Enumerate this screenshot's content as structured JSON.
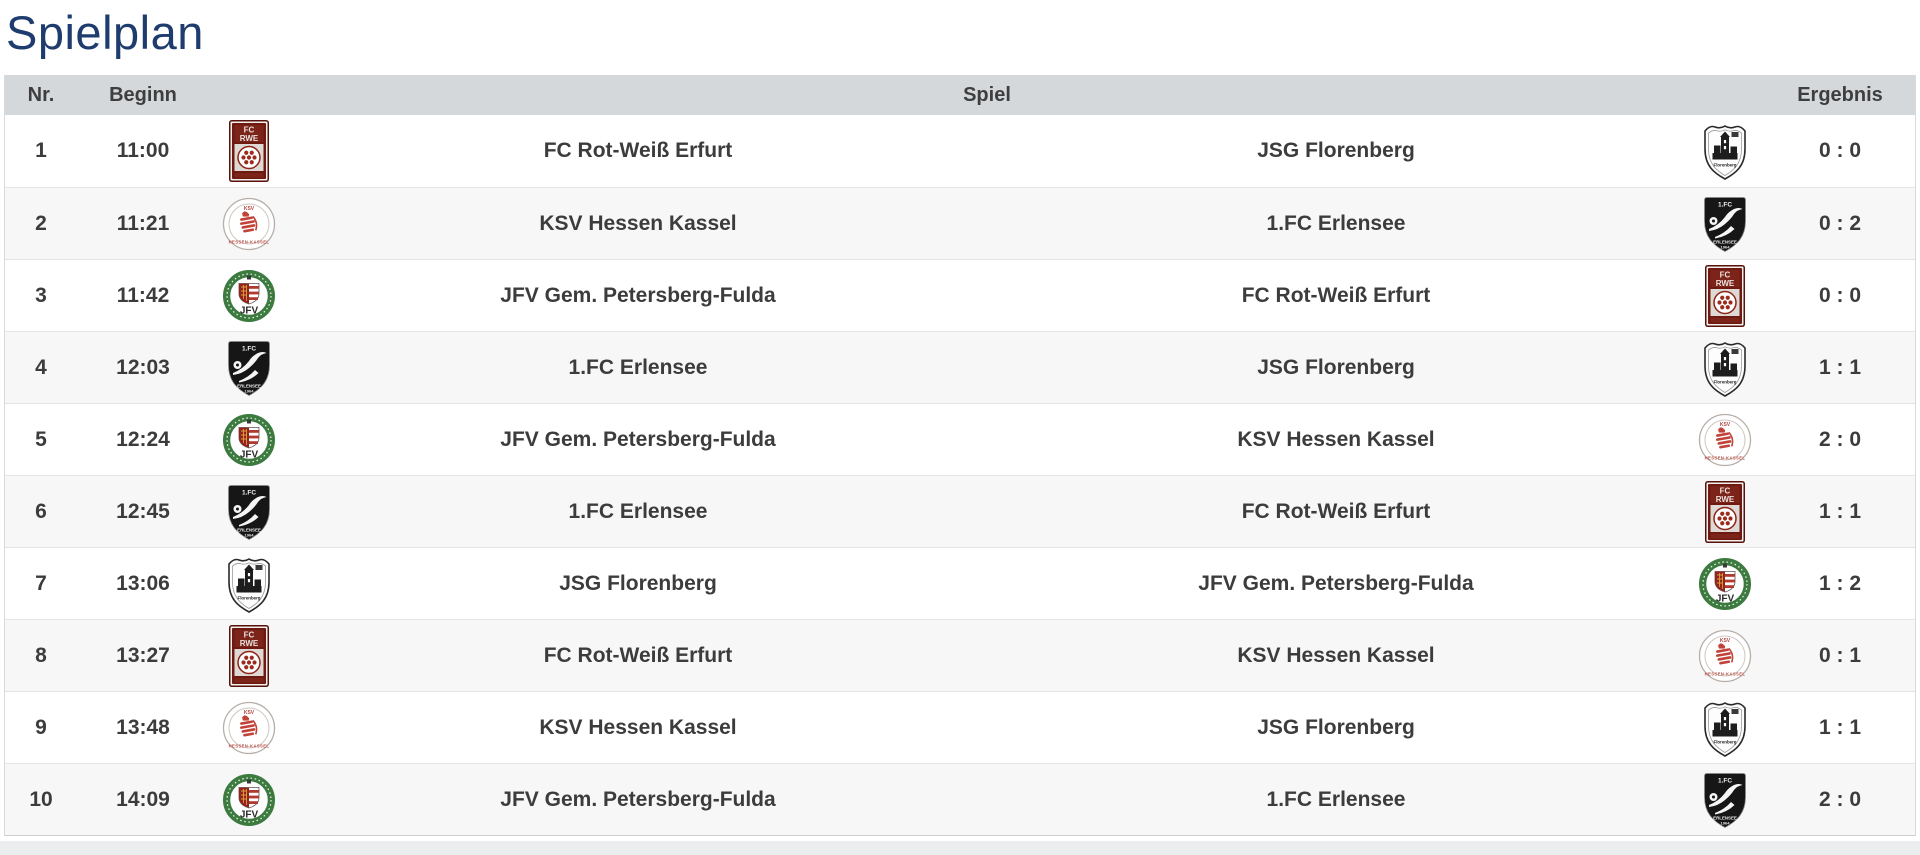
{
  "page": {
    "title": "Spielplan"
  },
  "colors": {
    "title": "#1f3c6e",
    "header_bg": "#d5d8db",
    "header_text": "#3e3e3e",
    "text": "#3c3c3c",
    "row_alt": "#f7f7f8",
    "row_border": "#e4e4e4"
  },
  "table": {
    "headers": {
      "nr": "Nr.",
      "beginn": "Beginn",
      "spiel": "Spiel",
      "ergebnis": "Ergebnis"
    },
    "rows": [
      {
        "nr": "1",
        "time": "11:00",
        "home": "FC Rot-Weiß Erfurt",
        "home_logo": "fc-rot-weiss-erfurt-logo",
        "away": "JSG Florenberg",
        "away_logo": "jsg-florenberg-logo",
        "result": "0 : 0"
      },
      {
        "nr": "2",
        "time": "11:21",
        "home": "KSV Hessen Kassel",
        "home_logo": "ksv-hessen-kassel-logo",
        "away": "1.FC Erlensee",
        "away_logo": "fc-erlensee-logo",
        "result": "0 : 2"
      },
      {
        "nr": "3",
        "time": "11:42",
        "home": "JFV Gem. Petersberg-Fulda",
        "home_logo": "jfv-petersberg-fulda-logo",
        "away": "FC Rot-Weiß Erfurt",
        "away_logo": "fc-rot-weiss-erfurt-logo",
        "result": "0 : 0"
      },
      {
        "nr": "4",
        "time": "12:03",
        "home": "1.FC Erlensee",
        "home_logo": "fc-erlensee-logo",
        "away": "JSG Florenberg",
        "away_logo": "jsg-florenberg-logo",
        "result": "1 : 1"
      },
      {
        "nr": "5",
        "time": "12:24",
        "home": "JFV Gem. Petersberg-Fulda",
        "home_logo": "jfv-petersberg-fulda-logo",
        "away": "KSV Hessen Kassel",
        "away_logo": "ksv-hessen-kassel-logo",
        "result": "2 : 0"
      },
      {
        "nr": "6",
        "time": "12:45",
        "home": "1.FC Erlensee",
        "home_logo": "fc-erlensee-logo",
        "away": "FC Rot-Weiß Erfurt",
        "away_logo": "fc-rot-weiss-erfurt-logo",
        "result": "1 : 1"
      },
      {
        "nr": "7",
        "time": "13:06",
        "home": "JSG Florenberg",
        "home_logo": "jsg-florenberg-logo",
        "away": "JFV Gem. Petersberg-Fulda",
        "away_logo": "jfv-petersberg-fulda-logo",
        "result": "1 : 2"
      },
      {
        "nr": "8",
        "time": "13:27",
        "home": "FC Rot-Weiß Erfurt",
        "home_logo": "fc-rot-weiss-erfurt-logo",
        "away": "KSV Hessen Kassel",
        "away_logo": "ksv-hessen-kassel-logo",
        "result": "0 : 1"
      },
      {
        "nr": "9",
        "time": "13:48",
        "home": "KSV Hessen Kassel",
        "home_logo": "ksv-hessen-kassel-logo",
        "away": "JSG Florenberg",
        "away_logo": "jsg-florenberg-logo",
        "result": "1 : 1"
      },
      {
        "nr": "10",
        "time": "14:09",
        "home": "JFV Gem. Petersberg-Fulda",
        "home_logo": "jfv-petersberg-fulda-logo",
        "away": "1.FC Erlensee",
        "away_logo": "fc-erlensee-logo",
        "result": "2 : 0"
      }
    ]
  }
}
